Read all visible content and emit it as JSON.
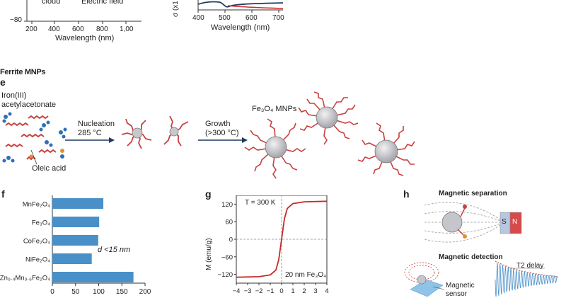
{
  "top_left_chart": {
    "labels": [
      "cloud",
      "Electric field"
    ],
    "ytick": "−80",
    "xticks": [
      "200",
      "400",
      "600",
      "800",
      "1,00"
    ],
    "xlabel": "Wavelength (nm)"
  },
  "top_right_chart": {
    "ylabel": "σ (x1",
    "xticks": [
      "400",
      "500",
      "600",
      "700"
    ],
    "xlabel": "Wavelength (nm)",
    "colors": {
      "blue": "#1f3a5f",
      "red": "#d02c2c"
    }
  },
  "section_title": "Ferrite MNPs",
  "panel_e": {
    "letter": "e",
    "precursor_label_line1": "Iron(III)",
    "precursor_label_line2": "acetylacetonate",
    "oleic_label": "Oleic acid",
    "step1_line1": "Nucleation",
    "step1_line2": "285 °C",
    "step2_line1": "Growth",
    "step2_line2": "(>300 °C)",
    "product_label": "Fe₃O₄ MNPs"
  },
  "panel_f": {
    "letter": "f",
    "annotation": "d <15 nm",
    "xticks": [
      "0",
      "50",
      "100",
      "150",
      "200"
    ],
    "bar_color": "#4a90c8"
  },
  "panel_g": {
    "letter": "g",
    "temperature_label": "T = 300 K",
    "ylabel": "M (emu/g)",
    "sample_label": "20 nm Fe₃O₄",
    "yticks": [
      "120",
      "60",
      "0",
      "−60",
      "−120"
    ],
    "xticks": [
      "−4",
      "−3",
      "−2",
      "−1",
      "0",
      "1",
      "2",
      "3",
      "4"
    ]
  },
  "panel_h": {
    "letter": "h",
    "separation_title": "Magnetic separation",
    "magnet_s": "S",
    "magnet_n": "N",
    "detection_title": "Magnetic detection",
    "t2_label": "T2 delay",
    "sensor_line1": "Magnetic",
    "sensor_line2": "sensor"
  },
  "chart_data": [
    {
      "type": "bar",
      "orientation": "horizontal",
      "categories": [
        "MnFe₂O₄",
        "Fe₃O₄",
        "CoFe₂O₄",
        "NiFe₂O₄",
        "Zn₀.₄Mn₀.₆Fe₂O₄"
      ],
      "values": [
        110,
        101,
        99,
        85,
        175
      ],
      "xlim": [
        0,
        200
      ]
    },
    {
      "type": "line",
      "series": [
        {
          "x": [
            -4,
            -2,
            -1,
            -0.5,
            -0.25,
            0,
            0.25,
            0.5,
            1,
            2,
            4
          ],
          "y": [
            -130,
            -128,
            -122,
            -105,
            -70,
            0,
            70,
            105,
            122,
            128,
            130
          ]
        }
      ],
      "xlim": [
        -4,
        4
      ],
      "ylim": [
        -150,
        150
      ]
    }
  ]
}
